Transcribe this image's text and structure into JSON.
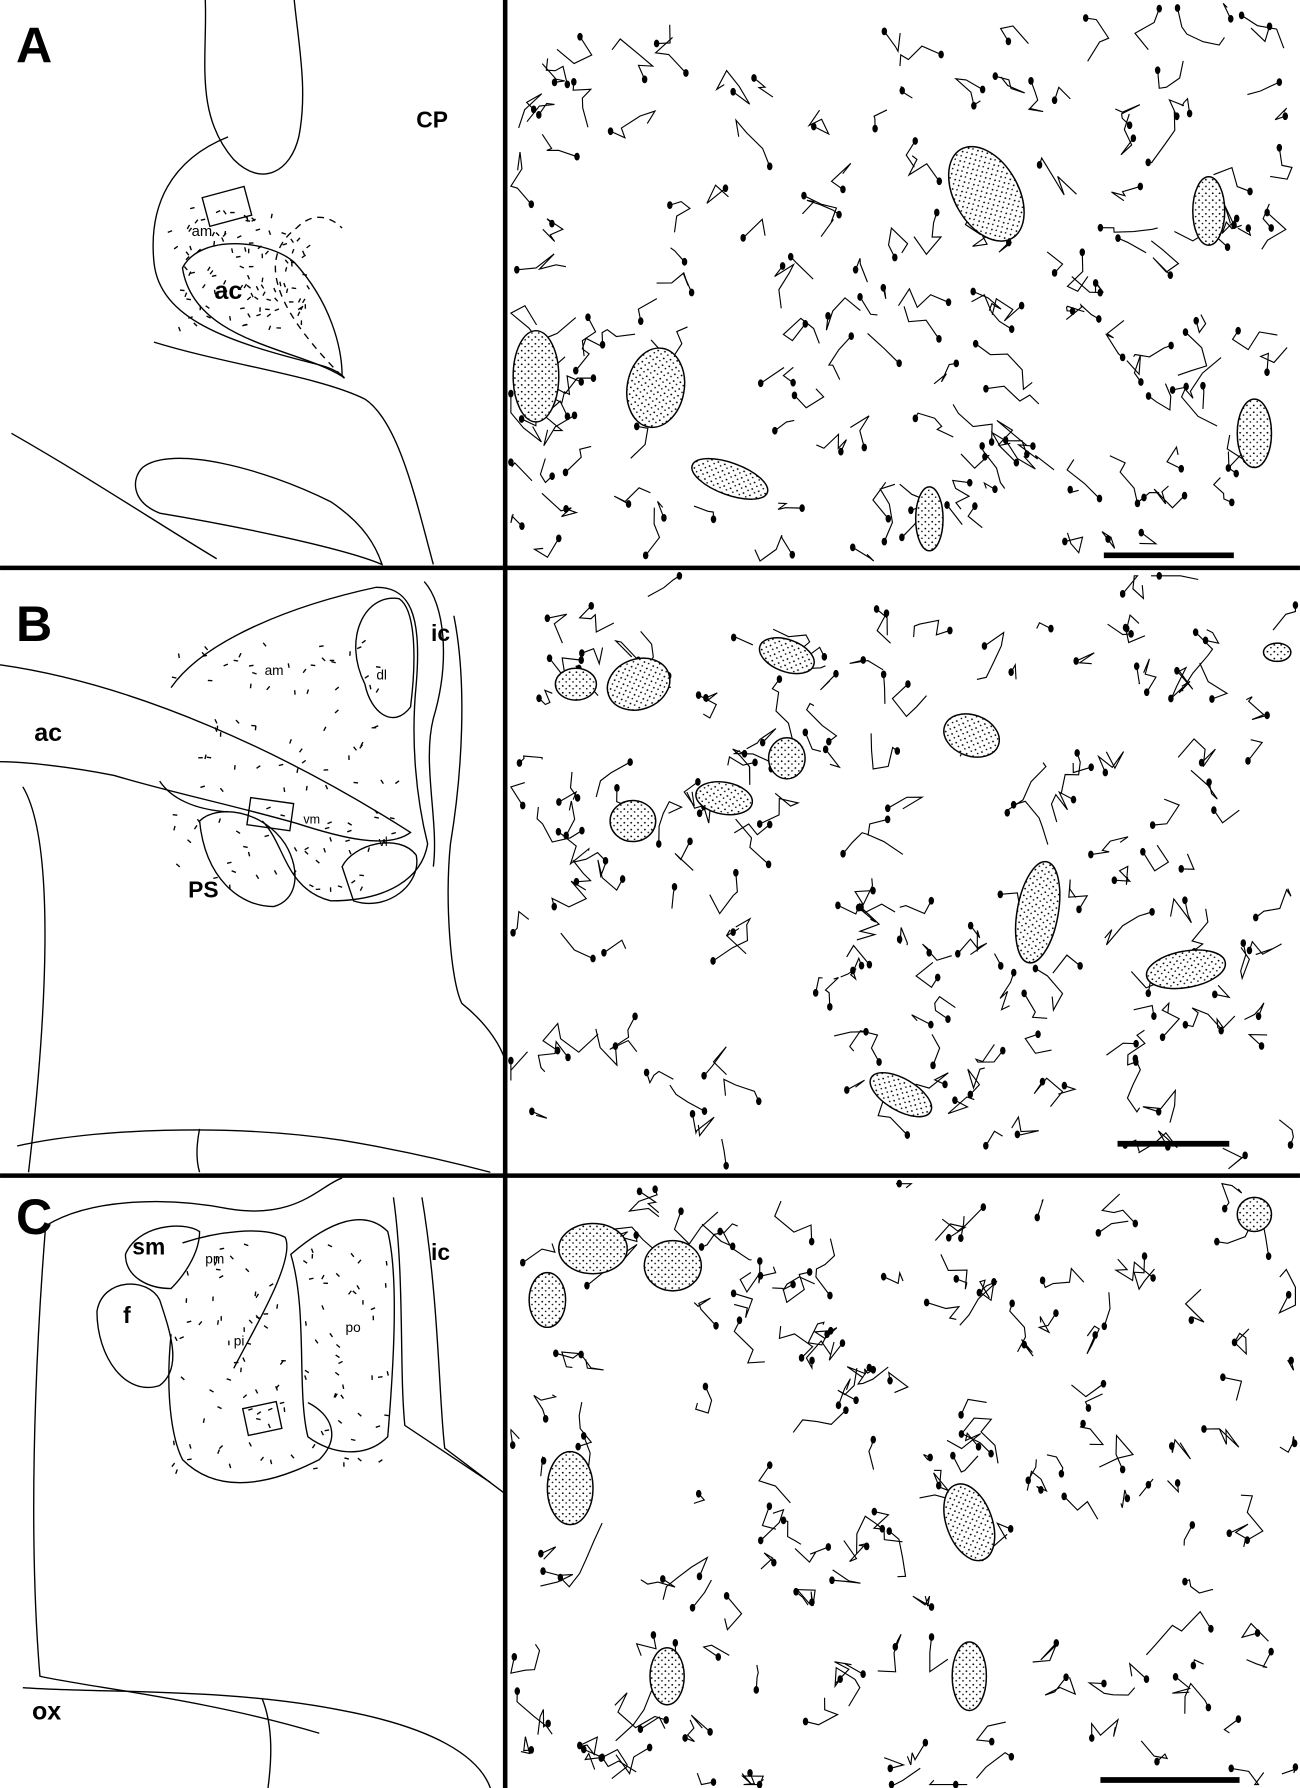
{
  "panels": [
    {
      "label": "A",
      "regions": [
        "CP",
        "am",
        "ac"
      ]
    },
    {
      "label": "B",
      "regions": [
        "ic",
        "am",
        "dl",
        "ac",
        "vm",
        "vl",
        "PS"
      ]
    },
    {
      "label": "C",
      "regions": [
        "sm",
        "ic",
        "pm",
        "f",
        "pi",
        "po",
        "ox"
      ]
    }
  ]
}
